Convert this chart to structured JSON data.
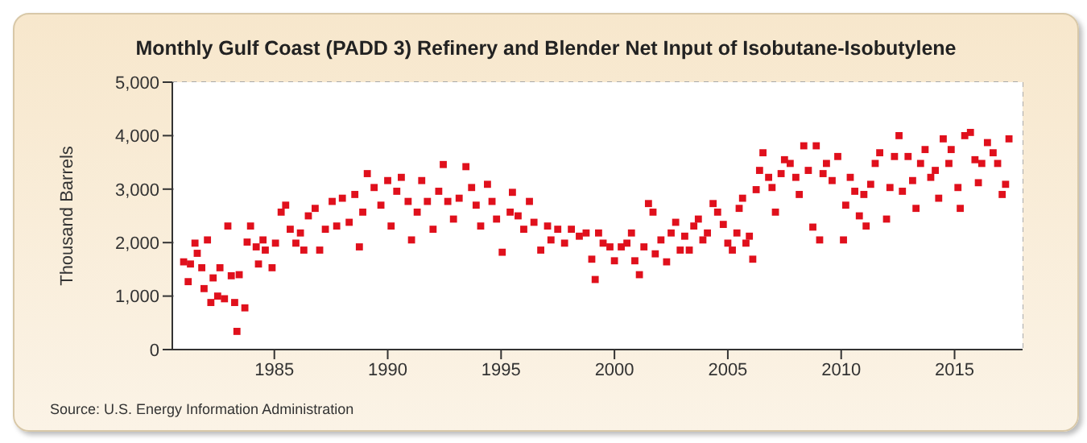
{
  "chart_data": {
    "type": "scatter",
    "title": "Monthly Gulf Coast (PADD 3) Refinery and Blender Net Input of Isobutane-Isobutylene",
    "ylabel": "Thousand Barrels",
    "annotations": [
      "Source: U.S. Energy Information Administration"
    ],
    "xlim": [
      1980.5,
      2018
    ],
    "xticks": [
      1985,
      1990,
      1995,
      2000,
      2005,
      2010,
      2015
    ],
    "ylim": [
      0,
      5000
    ],
    "yticks": [
      0,
      {
        "value": 1000,
        "label": "1,000"
      },
      {
        "value": 2000,
        "label": "2,000"
      },
      {
        "value": 3000,
        "label": "3,000"
      },
      {
        "value": 4000,
        "label": "4,000"
      },
      {
        "value": 5000,
        "label": "5,000"
      }
    ],
    "grid": true,
    "marker": "square",
    "series": [
      {
        "color": "#e0101c",
        "x": [
          1981.0,
          1981.2,
          1981.3,
          1981.5,
          1981.6,
          1981.8,
          1981.9,
          1982.05,
          1982.2,
          1982.3,
          1982.5,
          1982.6,
          1982.8,
          1982.95,
          1983.1,
          1983.25,
          1983.35,
          1983.45,
          1983.7,
          1983.8,
          1983.95,
          1984.2,
          1984.3,
          1984.5,
          1984.6,
          1984.9,
          1985.05,
          1985.3,
          1985.5,
          1985.7,
          1985.95,
          1986.15,
          1986.3,
          1986.5,
          1986.8,
          1987.0,
          1987.25,
          1987.55,
          1987.75,
          1988.0,
          1988.3,
          1988.55,
          1988.75,
          1988.9,
          1989.1,
          1989.4,
          1989.7,
          1990.0,
          1990.15,
          1990.4,
          1990.6,
          1990.9,
          1991.05,
          1991.3,
          1991.5,
          1991.75,
          1992.0,
          1992.25,
          1992.45,
          1992.65,
          1992.9,
          1993.15,
          1993.45,
          1993.7,
          1993.9,
          1994.1,
          1994.4,
          1994.6,
          1994.8,
          1995.05,
          1995.4,
          1995.5,
          1995.75,
          1996.0,
          1996.25,
          1996.45,
          1996.75,
          1997.05,
          1997.2,
          1997.5,
          1997.8,
          1998.1,
          1998.45,
          1998.75,
          1999.0,
          1999.15,
          1999.3,
          1999.5,
          1999.8,
          2000.0,
          2000.3,
          2000.55,
          2000.75,
          2000.9,
          2001.1,
          2001.3,
          2001.5,
          2001.7,
          2001.8,
          2002.05,
          2002.3,
          2002.5,
          2002.7,
          2002.9,
          2003.1,
          2003.3,
          2003.5,
          2003.7,
          2003.9,
          2004.1,
          2004.35,
          2004.55,
          2004.8,
          2005.0,
          2005.2,
          2005.4,
          2005.5,
          2005.65,
          2005.8,
          2005.95,
          2006.1,
          2006.25,
          2006.4,
          2006.55,
          2006.8,
          2006.95,
          2007.1,
          2007.35,
          2007.5,
          2007.75,
          2008.0,
          2008.15,
          2008.35,
          2008.55,
          2008.75,
          2008.9,
          2009.05,
          2009.2,
          2009.35,
          2009.6,
          2009.85,
          2010.1,
          2010.2,
          2010.4,
          2010.6,
          2010.8,
          2011.0,
          2011.1,
          2011.3,
          2011.5,
          2011.7,
          2012.0,
          2012.15,
          2012.35,
          2012.55,
          2012.7,
          2012.95,
          2013.15,
          2013.3,
          2013.5,
          2013.7,
          2013.95,
          2014.15,
          2014.3,
          2014.5,
          2014.75,
          2014.85,
          2015.15,
          2015.25,
          2015.45,
          2015.7,
          2015.9,
          2016.05,
          2016.2,
          2016.45,
          2016.7,
          2016.9,
          2017.1,
          2017.25,
          2017.4
        ],
        "values": [
          1640,
          1270,
          1600,
          1990,
          1800,
          1530,
          1140,
          2050,
          880,
          1340,
          1000,
          1530,
          950,
          2310,
          1380,
          880,
          340,
          1400,
          780,
          2010,
          2310,
          1920,
          1600,
          2050,
          1860,
          1530,
          1990,
          2570,
          2700,
          2250,
          1990,
          2180,
          1860,
          2500,
          2640,
          1860,
          2250,
          2770,
          2310,
          2830,
          2380,
          2900,
          1920,
          2570,
          3290,
          3030,
          2700,
          3160,
          2310,
          2960,
          3220,
          2770,
          2050,
          2570,
          3160,
          2770,
          2250,
          2960,
          3460,
          2770,
          2440,
          2830,
          3420,
          3030,
          2700,
          2310,
          3090,
          2770,
          2440,
          1820,
          2570,
          2940,
          2500,
          2250,
          2770,
          2380,
          1860,
          2310,
          2050,
          2250,
          1990,
          2250,
          2120,
          2180,
          1690,
          1310,
          2180,
          1990,
          1920,
          1660,
          1920,
          1990,
          2180,
          1660,
          1400,
          1920,
          2730,
          2570,
          1790,
          2050,
          1640,
          2180,
          2380,
          1860,
          2120,
          1860,
          2310,
          2440,
          2050,
          2180,
          2730,
          2570,
          2340,
          1990,
          1860,
          2180,
          2640,
          2830,
          1990,
          2120,
          1690,
          2990,
          3350,
          3680,
          3220,
          3030,
          2570,
          3290,
          3550,
          3480,
          3220,
          2900,
          3810,
          3350,
          2290,
          3810,
          2050,
          3290,
          3480,
          3160,
          3610,
          2050,
          2700,
          3220,
          2960,
          2500,
          2900,
          2310,
          3090,
          3480,
          3680,
          2440,
          3030,
          3610,
          4000,
          2960,
          3610,
          3160,
          2640,
          3480,
          3740,
          3220,
          3350,
          2830,
          3940,
          3480,
          3740,
          3030,
          2640,
          4000,
          4060,
          3550,
          3120,
          3480,
          3870,
          3680,
          3480,
          2900,
          3090,
          3940
        ]
      }
    ]
  }
}
